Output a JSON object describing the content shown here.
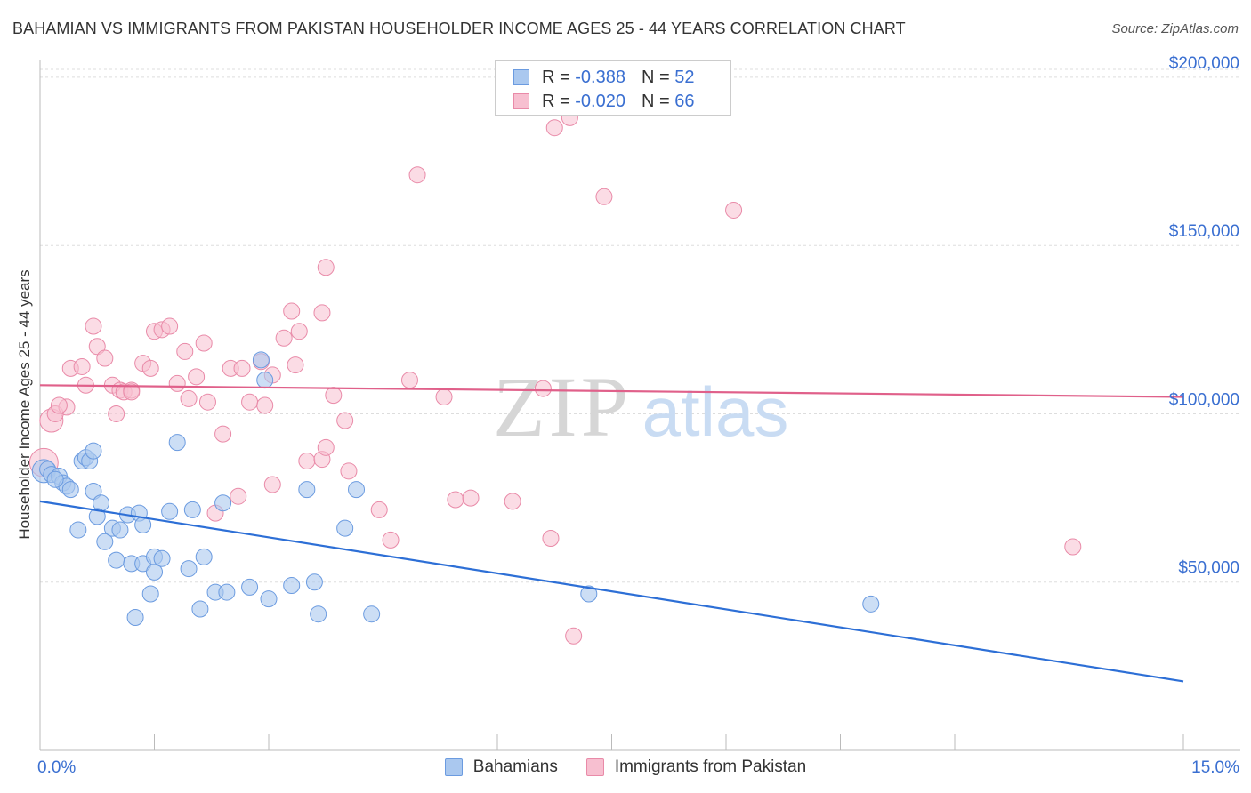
{
  "title": "BAHAMIAN VS IMMIGRANTS FROM PAKISTAN HOUSEHOLDER INCOME AGES 25 - 44 YEARS CORRELATION CHART",
  "source": "Source: ZipAtlas.com",
  "watermark": {
    "zip": "ZIP",
    "atlas": "atlas"
  },
  "legend": {
    "rows": [
      {
        "r_label": "R = ",
        "r_value": "-0.388",
        "n_label": "N = ",
        "n_value": "52"
      },
      {
        "r_label": "R = ",
        "r_value": "-0.020",
        "n_label": "N = ",
        "n_value": "66"
      }
    ]
  },
  "bottom_legend": [
    "Bahamians",
    "Immigrants from Pakistan"
  ],
  "colors": {
    "blue_fill": "#aac8ef",
    "blue_stroke": "#6b9be0",
    "blue_line": "#2d6fd6",
    "pink_fill": "#f7bfd0",
    "pink_stroke": "#e98aa8",
    "pink_line": "#e0608a",
    "tick_text": "#3a6fd1"
  },
  "chart_data": {
    "type": "scatter",
    "xlabel": "",
    "ylabel": "Householder Income Ages 25 - 44 years",
    "xlim": [
      0,
      15
    ],
    "ylim": [
      0,
      205000
    ],
    "x_tick_labels": [
      "0.0%",
      "15.0%"
    ],
    "y_ticks": [
      50000,
      100000,
      150000,
      200000
    ],
    "y_tick_labels": [
      "$50,000",
      "$100,000",
      "$150,000",
      "$200,000"
    ],
    "grid": true,
    "series": [
      {
        "name": "Bahamians",
        "color": "#aac8ef",
        "trend": {
          "x": [
            0,
            15
          ],
          "y": [
            74000,
            20500
          ]
        },
        "points": [
          [
            0.05,
            83000
          ],
          [
            0.1,
            83500
          ],
          [
            0.15,
            82000
          ],
          [
            0.25,
            81500
          ],
          [
            0.3,
            79500
          ],
          [
            0.35,
            78500
          ],
          [
            0.4,
            77500
          ],
          [
            0.55,
            86000
          ],
          [
            0.6,
            87000
          ],
          [
            0.65,
            86000
          ],
          [
            0.7,
            89000
          ],
          [
            0.7,
            77000
          ],
          [
            0.8,
            73500
          ],
          [
            0.5,
            65500
          ],
          [
            0.75,
            69500
          ],
          [
            0.85,
            62000
          ],
          [
            0.95,
            66000
          ],
          [
            1.05,
            65500
          ],
          [
            1.15,
            70000
          ],
          [
            1.3,
            70500
          ],
          [
            1.35,
            67000
          ],
          [
            1.0,
            56500
          ],
          [
            1.2,
            55500
          ],
          [
            1.35,
            55500
          ],
          [
            1.5,
            53000
          ],
          [
            1.5,
            57500
          ],
          [
            1.6,
            57000
          ],
          [
            1.7,
            71000
          ],
          [
            1.95,
            54000
          ],
          [
            2.0,
            71500
          ],
          [
            2.15,
            57500
          ],
          [
            1.45,
            46500
          ],
          [
            1.25,
            39500
          ],
          [
            2.1,
            42000
          ],
          [
            2.3,
            47000
          ],
          [
            2.45,
            47000
          ],
          [
            2.4,
            73500
          ],
          [
            1.8,
            91500
          ],
          [
            2.75,
            48500
          ],
          [
            3.0,
            45000
          ],
          [
            3.3,
            49000
          ],
          [
            3.6,
            50000
          ],
          [
            3.65,
            40500
          ],
          [
            3.5,
            77500
          ],
          [
            4.15,
            77500
          ],
          [
            4.0,
            66000
          ],
          [
            4.35,
            40500
          ],
          [
            2.9,
            116000
          ],
          [
            2.95,
            110000
          ],
          [
            7.2,
            46500
          ],
          [
            10.9,
            43500
          ],
          [
            0.2,
            80500
          ]
        ]
      },
      {
        "name": "Immigrants from Pakistan",
        "color": "#f7bfd0",
        "trend": {
          "x": [
            0,
            15
          ],
          "y": [
            108500,
            105000
          ]
        },
        "points": [
          [
            0.05,
            85500
          ],
          [
            0.15,
            98000
          ],
          [
            0.2,
            100000
          ],
          [
            0.35,
            102000
          ],
          [
            0.4,
            113500
          ],
          [
            0.55,
            114000
          ],
          [
            0.6,
            108500
          ],
          [
            0.7,
            126000
          ],
          [
            0.75,
            120000
          ],
          [
            0.85,
            116500
          ],
          [
            0.95,
            108500
          ],
          [
            1.0,
            100000
          ],
          [
            1.05,
            107000
          ],
          [
            1.1,
            106500
          ],
          [
            1.2,
            107000
          ],
          [
            1.35,
            115000
          ],
          [
            1.45,
            113500
          ],
          [
            1.5,
            124500
          ],
          [
            1.6,
            125000
          ],
          [
            1.7,
            126000
          ],
          [
            1.8,
            109000
          ],
          [
            1.9,
            118500
          ],
          [
            1.95,
            104500
          ],
          [
            2.05,
            111000
          ],
          [
            2.15,
            121000
          ],
          [
            2.2,
            103500
          ],
          [
            2.4,
            94000
          ],
          [
            2.3,
            70500
          ],
          [
            2.5,
            113500
          ],
          [
            2.65,
            113500
          ],
          [
            2.75,
            103500
          ],
          [
            2.6,
            75500
          ],
          [
            2.9,
            115500
          ],
          [
            2.95,
            102500
          ],
          [
            3.05,
            111500
          ],
          [
            3.05,
            79000
          ],
          [
            3.2,
            122500
          ],
          [
            3.3,
            130500
          ],
          [
            3.35,
            114500
          ],
          [
            3.4,
            124500
          ],
          [
            3.5,
            86000
          ],
          [
            3.7,
            130000
          ],
          [
            3.7,
            86500
          ],
          [
            3.75,
            90000
          ],
          [
            3.75,
            143500
          ],
          [
            3.85,
            105500
          ],
          [
            4.0,
            98000
          ],
          [
            4.05,
            83000
          ],
          [
            4.45,
            71500
          ],
          [
            4.6,
            62500
          ],
          [
            4.85,
            110000
          ],
          [
            4.95,
            171000
          ],
          [
            5.3,
            105000
          ],
          [
            5.45,
            74500
          ],
          [
            5.65,
            75000
          ],
          [
            6.2,
            74000
          ],
          [
            6.6,
            107500
          ],
          [
            6.7,
            63000
          ],
          [
            6.75,
            185000
          ],
          [
            6.95,
            188000
          ],
          [
            7.0,
            34000
          ],
          [
            7.4,
            164500
          ],
          [
            9.1,
            160500
          ],
          [
            13.55,
            60500
          ],
          [
            0.25,
            102500
          ],
          [
            1.2,
            106500
          ]
        ]
      }
    ]
  }
}
